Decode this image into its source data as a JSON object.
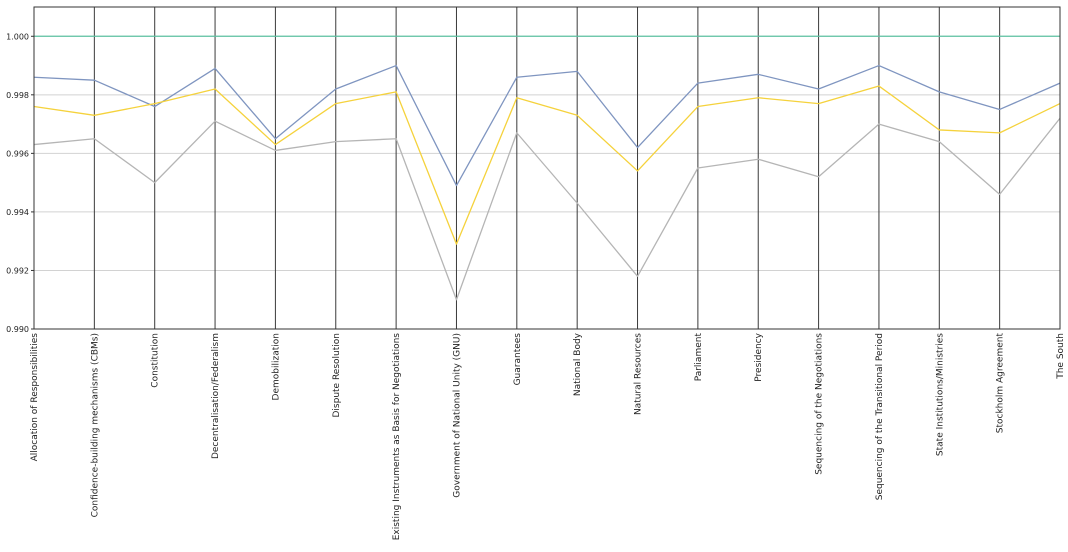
{
  "chart_data": {
    "type": "line",
    "subtype": "parallel-coordinates",
    "categories": [
      "Allocation of Responsibilities",
      "Confidence-building mechanisms (CBMs)",
      "Constitution",
      "Decentralisation/Federalism",
      "Demobilization",
      "Dispute Resolution",
      "Existing Instruments as Basis for Negotiations",
      "Government of National Unity (GNU)",
      "Guarantees",
      "National Body",
      "Natural Resources",
      "Parliament",
      "Presidency",
      "Sequencing of the Negotiations",
      "Sequencing of the Transitional Period",
      "State Institutions/Ministries",
      "Stockholm Agreement",
      "The South"
    ],
    "series": [
      {
        "color": "#7f95c0",
        "values": [
          0.9986,
          0.9985,
          0.9976,
          0.9989,
          0.9965,
          0.9982,
          0.999,
          0.9949,
          0.9986,
          0.9988,
          0.9962,
          0.9984,
          0.9987,
          0.9982,
          0.999,
          0.9981,
          0.9975,
          0.9984
        ]
      },
      {
        "color": "#f5d23c",
        "values": [
          0.9976,
          0.9973,
          0.9977,
          0.9982,
          0.9963,
          0.9977,
          0.9981,
          0.9929,
          0.9979,
          0.9973,
          0.9954,
          0.9976,
          0.9979,
          0.9977,
          0.9983,
          0.9968,
          0.9967,
          0.9977
        ]
      },
      {
        "color": "#b5b5b5",
        "values": [
          0.9963,
          0.9965,
          0.995,
          0.9971,
          0.9961,
          0.9964,
          0.9965,
          0.991,
          0.9967,
          0.9943,
          0.9918,
          0.9955,
          0.9958,
          0.9952,
          0.997,
          0.9964,
          0.9946,
          0.9972
        ]
      },
      {
        "color": "#5fc4a4",
        "values": [
          1.0,
          1.0,
          1.0,
          1.0,
          1.0,
          1.0,
          1.0,
          1.0,
          1.0,
          1.0,
          1.0,
          1.0,
          1.0,
          1.0,
          1.0,
          1.0,
          1.0,
          1.0
        ]
      }
    ],
    "ylim": [
      0.99,
      1.001
    ],
    "yticks": [
      "0.990",
      "0.992",
      "0.994",
      "0.996",
      "0.998",
      "1.000"
    ],
    "grid": true,
    "legend": false,
    "title": "",
    "xlabel": "",
    "ylabel": ""
  }
}
